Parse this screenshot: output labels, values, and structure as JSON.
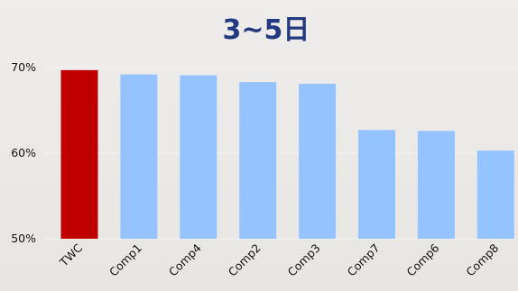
{
  "chart_data": {
    "type": "bar",
    "title": "3~5日",
    "xlabel": "",
    "ylabel": "",
    "categories": [
      "TWC",
      "Comp1",
      "Comp4",
      "Comp2",
      "Comp3",
      "Comp7",
      "Comp6",
      "Comp8"
    ],
    "values": [
      69.7,
      69.2,
      69.1,
      68.3,
      68.1,
      62.7,
      62.6,
      60.3
    ],
    "ylim": [
      50,
      72
    ],
    "yticks": [
      50,
      60,
      70
    ],
    "ytick_labels": [
      "50%",
      "60%",
      "70%"
    ],
    "grid": true,
    "legend": "none",
    "colors": {
      "highlight": "#c00000",
      "default": "#95c3ff",
      "title": "#233a80",
      "gridline": "#f5f4f2"
    },
    "highlight_category": "TWC"
  }
}
